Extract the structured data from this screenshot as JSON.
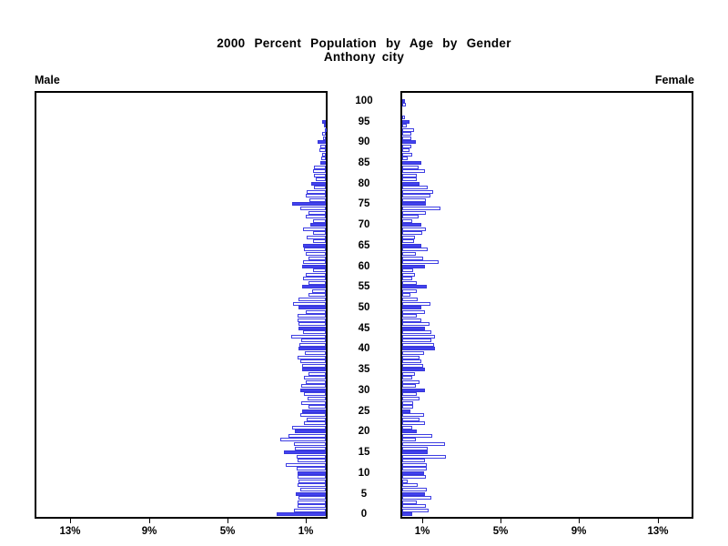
{
  "chart_data": {
    "type": "bar",
    "subtype": "population-pyramid",
    "title": "2000 Percent Population by Age by Gender",
    "subtitle": "Anthony city",
    "left_label": "Male",
    "right_label": "Female",
    "units": "percent of population",
    "age_range": [
      0,
      100
    ],
    "age_axis_tick_labels": [
      "0",
      "5",
      "10",
      "15",
      "20",
      "25",
      "30",
      "35",
      "40",
      "45",
      "50",
      "55",
      "60",
      "65",
      "70",
      "75",
      "80",
      "85",
      "90",
      "95",
      "100"
    ],
    "x_axis_tick_values": [
      1,
      5,
      9,
      13
    ],
    "x_axis_tick_labels_male": [
      "1%",
      "5%",
      "9%",
      "13%"
    ],
    "x_axis_tick_labels_female": [
      "1%",
      "5%",
      "9%",
      "13%"
    ],
    "xlim_each_side": [
      0,
      14.9
    ],
    "grid": false,
    "legend_position": "none",
    "highlight_rule": "bars for ages divisible by 5 are solid filled; other ages are white with blue outline",
    "colors": {
      "solid_bar_fill": "#4242ef",
      "bar_outline": "#3f3fe3",
      "outline_bar_fill": "#ffffff",
      "axis": "#000000",
      "text": "#000000",
      "background": "#ffffff"
    },
    "series": [
      {
        "name": "Male",
        "ages_start_at": 0,
        "values": [
          2.48,
          1.61,
          1.45,
          1.45,
          1.4,
          1.53,
          1.31,
          1.45,
          1.41,
          1.45,
          1.45,
          1.5,
          2.03,
          1.44,
          1.48,
          2.14,
          1.59,
          1.64,
          2.31,
          1.88,
          1.57,
          1.7,
          1.1,
          0.99,
          1.31,
          1.22,
          0.87,
          1.24,
          0.92,
          1.09,
          1.3,
          1.24,
          1.0,
          1.12,
          0.9,
          1.22,
          1.22,
          1.31,
          1.42,
          1.07,
          1.39,
          1.35,
          1.24,
          1.76,
          1.16,
          1.39,
          1.39,
          1.44,
          1.45,
          1.0,
          1.4,
          1.65,
          1.4,
          0.9,
          0.7,
          1.22,
          0.87,
          1.18,
          1.04,
          0.64,
          1.19,
          1.15,
          0.87,
          1.02,
          1.1,
          1.16,
          0.66,
          0.95,
          0.63,
          1.18,
          0.78,
          0.64,
          1.01,
          0.87,
          1.3,
          1.73,
          0.85,
          1.0,
          0.95,
          0.6,
          0.72,
          0.52,
          0.58,
          0.67,
          0.6,
          0.3,
          0.25,
          0.2,
          0.32,
          0.28,
          0.41,
          0.12,
          0.18,
          0.05,
          0.09,
          0.17,
          0,
          0,
          0,
          0,
          0
        ]
      },
      {
        "name": "Female",
        "ages_start_at": 0,
        "values": [
          0.5,
          1.35,
          1.19,
          0.73,
          1.46,
          1.16,
          1.24,
          0.8,
          0.26,
          1.21,
          1.1,
          1.25,
          1.25,
          1.15,
          2.22,
          1.3,
          1.3,
          2.17,
          0.69,
          1.51,
          0.76,
          0.49,
          1.15,
          0.87,
          1.09,
          0.41,
          0.55,
          0.57,
          0.87,
          0.72,
          1.15,
          0.69,
          0.87,
          0.49,
          0.64,
          1.18,
          1.07,
          0.95,
          0.87,
          1.1,
          1.68,
          1.61,
          1.48,
          1.68,
          1.48,
          1.18,
          1.38,
          0.95,
          0.75,
          1.18,
          0.99,
          1.45,
          0.8,
          0.41,
          0.72,
          1.25,
          0.75,
          0.49,
          0.64,
          0.54,
          1.15,
          1.87,
          1.05,
          0.68,
          1.28,
          0.95,
          0.6,
          0.64,
          1.02,
          1.19,
          0.98,
          0.49,
          0.83,
          1.21,
          1.94,
          1.22,
          1.2,
          1.42,
          1.57,
          1.3,
          0.87,
          0.76,
          0.76,
          1.15,
          0.84,
          0.95,
          0.26,
          0.49,
          0.38,
          0.46,
          0.7,
          0.46,
          0.45,
          0.61,
          0.23,
          0.36,
          0.12,
          0,
          0,
          0.2,
          0.12
        ]
      }
    ]
  }
}
